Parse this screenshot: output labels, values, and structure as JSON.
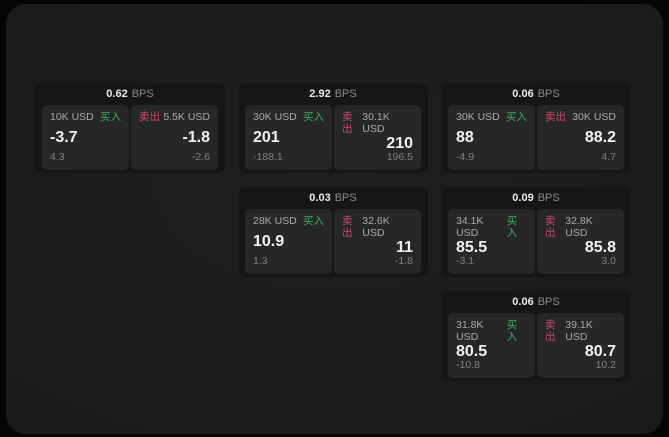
{
  "labels": {
    "bps_unit": "BPS",
    "buy": "买入",
    "sell": "卖出"
  },
  "colors": {
    "buy_accent": "#3cab67",
    "sell_accent": "#cc4b6d",
    "panel_bg": "#272727",
    "card_bg": "#161616",
    "page_bg": "#1b1b1b"
  },
  "cards": [
    {
      "col": 1,
      "row": 1,
      "bps": "0.62",
      "buy": {
        "amount": "10K USD",
        "main": "-3.7",
        "sub": "4.3"
      },
      "sell": {
        "amount": "5.5K USD",
        "main": "-1.8",
        "sub": "-2.6"
      }
    },
    {
      "col": 2,
      "row": 1,
      "bps": "2.92",
      "buy": {
        "amount": "30K USD",
        "main": "201",
        "sub": "-188.1"
      },
      "sell": {
        "amount": "30.1K USD",
        "main": "210",
        "sub": "196.5"
      }
    },
    {
      "col": 3,
      "row": 1,
      "bps": "0.06",
      "buy": {
        "amount": "30K USD",
        "main": "88",
        "sub": "-4.9"
      },
      "sell": {
        "amount": "30K USD",
        "main": "88.2",
        "sub": "4.7"
      }
    },
    {
      "col": 2,
      "row": 2,
      "bps": "0.03",
      "buy": {
        "amount": "28K USD",
        "main": "10.9",
        "sub": "1.3"
      },
      "sell": {
        "amount": "32.6K USD",
        "main": "11",
        "sub": "-1.8"
      }
    },
    {
      "col": 3,
      "row": 2,
      "bps": "0.09",
      "buy": {
        "amount": "34.1K USD",
        "main": "85.5",
        "sub": "-3.1"
      },
      "sell": {
        "amount": "32.8K USD",
        "main": "85.8",
        "sub": "3.0"
      }
    },
    {
      "col": 3,
      "row": 3,
      "bps": "0.06",
      "buy": {
        "amount": "31.8K USD",
        "main": "80.5",
        "sub": "-10.8"
      },
      "sell": {
        "amount": "39.1K USD",
        "main": "80.7",
        "sub": "10.2"
      }
    }
  ]
}
